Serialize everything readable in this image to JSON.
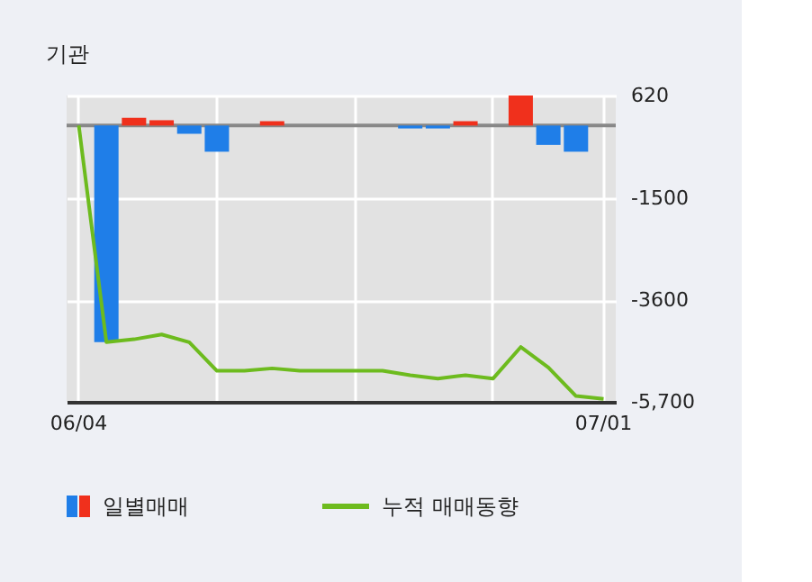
{
  "chart_data": {
    "type": "bar",
    "title": "기관",
    "categories": [
      "06/04",
      null,
      null,
      null,
      null,
      null,
      null,
      null,
      null,
      null,
      null,
      null,
      null,
      null,
      null,
      null,
      null,
      null,
      null,
      "07/01"
    ],
    "series": [
      {
        "name": "일별매매",
        "values": [
          0,
          -4470,
          160,
          110,
          -170,
          -540,
          0,
          90,
          0,
          0,
          0,
          0,
          -60,
          -60,
          90,
          0,
          620,
          -400,
          -540,
          0
        ],
        "colors": [
          "#f0301c",
          "#1f7ee8",
          "#f0301c",
          "#f0301c",
          "#1f7ee8",
          "#1f7ee8",
          "#f0301c",
          "#f0301c",
          "#f0301c",
          "#f0301c",
          "#f0301c",
          "#f0301c",
          "#1f7ee8",
          "#1f7ee8",
          "#f0301c",
          "#f0301c",
          "#f0301c",
          "#1f7ee8",
          "#1f7ee8",
          "#f0301c"
        ]
      },
      {
        "name": "누적 매매동향",
        "type": "line",
        "color": "#6dbb1e",
        "values": [
          0,
          -4470,
          -4410,
          -4310,
          -4470,
          -5060,
          -5060,
          -5010,
          -5060,
          -5060,
          -5060,
          -5060,
          -5150,
          -5220,
          -5150,
          -5220,
          -4570,
          -4990,
          -5580,
          -5640
        ]
      }
    ],
    "ylim": [
      -5700,
      620
    ],
    "yticks": [
      620,
      -1500,
      -3600,
      {
        "value": -5700,
        "label": "-5,700"
      }
    ],
    "ref_lines": [
      {
        "axis": "y",
        "value": 0,
        "color": "#888888"
      }
    ],
    "grid": true,
    "legend": "bottom"
  }
}
